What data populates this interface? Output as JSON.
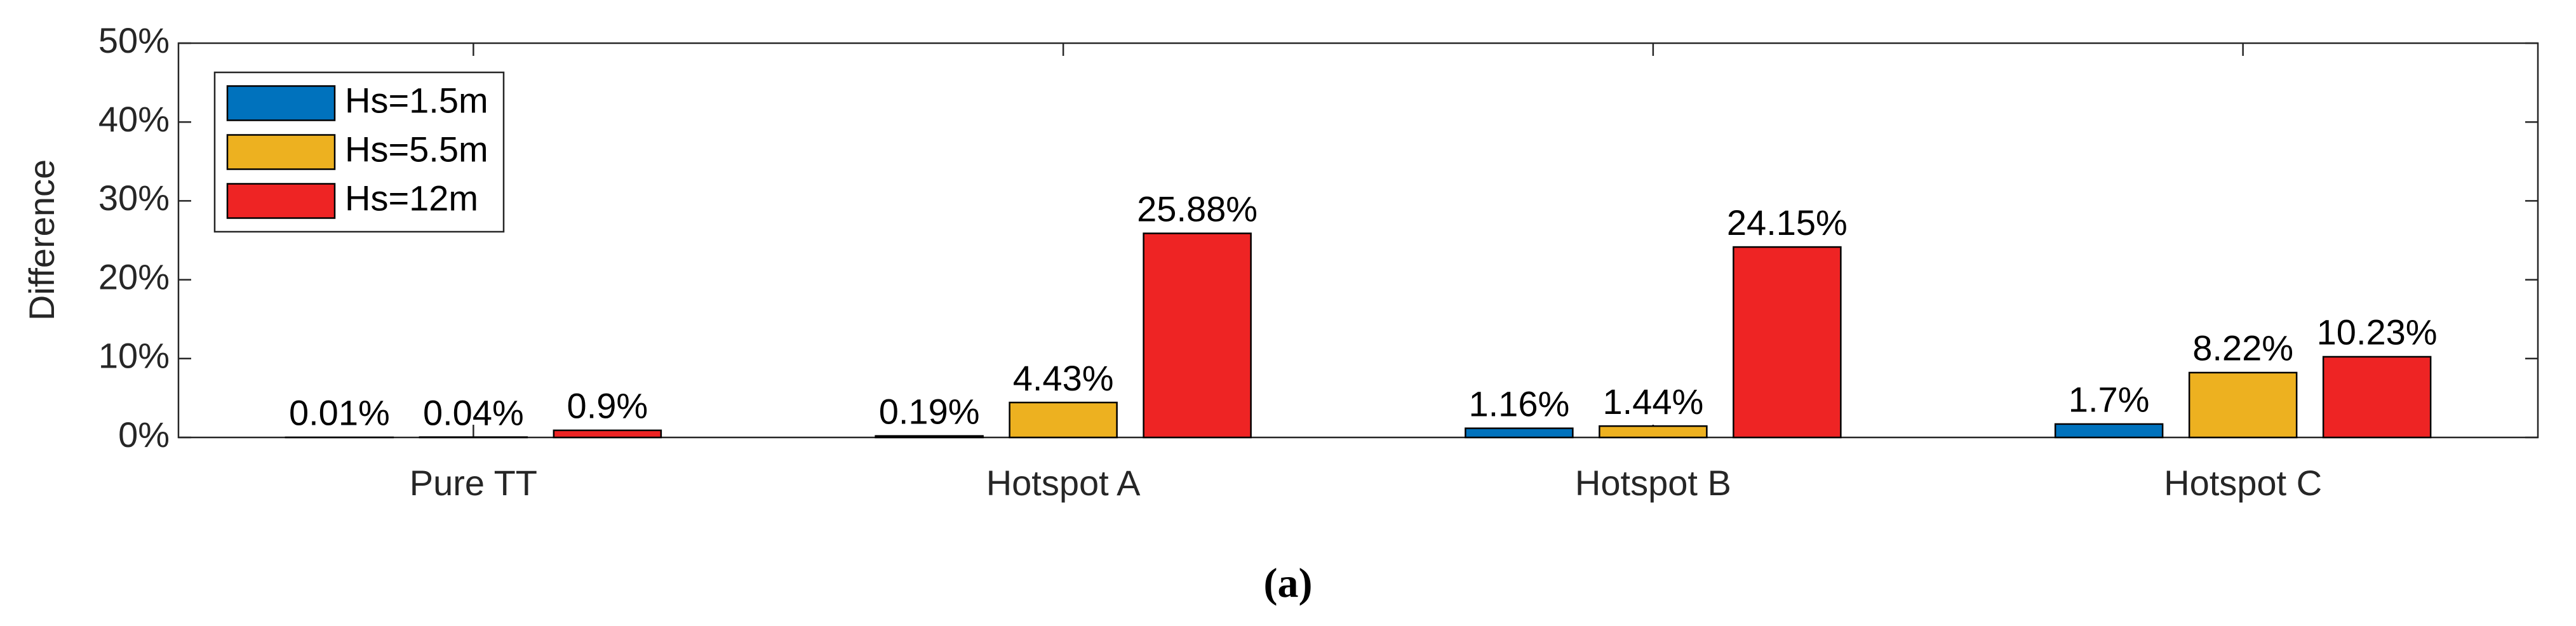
{
  "chart_data": {
    "type": "bar",
    "ylabel": "Difference",
    "caption": "(a)",
    "categories": [
      "Pure TT",
      "Hotspot A",
      "Hotspot B",
      "Hotspot C"
    ],
    "series": [
      {
        "name": "Hs=1.5m",
        "color": "#0072bd",
        "values": [
          0.01,
          0.19,
          1.16,
          1.7
        ],
        "value_labels": [
          "0.01%",
          "0.19%",
          "1.16%",
          "1.7%"
        ]
      },
      {
        "name": "Hs=5.5m",
        "color": "#edb120",
        "values": [
          0.04,
          4.43,
          1.44,
          8.22
        ],
        "value_labels": [
          "0.04%",
          "4.43%",
          "1.44%",
          "8.22%"
        ]
      },
      {
        "name": "Hs=12m",
        "color": "#ee2424",
        "values": [
          0.9,
          25.88,
          24.15,
          10.23
        ],
        "value_labels": [
          "0.9%",
          "25.88%",
          "24.15%",
          "10.23%"
        ]
      }
    ],
    "ylim": [
      0,
      50
    ],
    "yticks": [
      {
        "value": 0,
        "label": "0%"
      },
      {
        "value": 10,
        "label": "10%"
      },
      {
        "value": 20,
        "label": "20%"
      },
      {
        "value": 30,
        "label": "30%"
      },
      {
        "value": 40,
        "label": "40%"
      },
      {
        "value": 50,
        "label": "50%"
      }
    ],
    "legend": "upper left"
  }
}
